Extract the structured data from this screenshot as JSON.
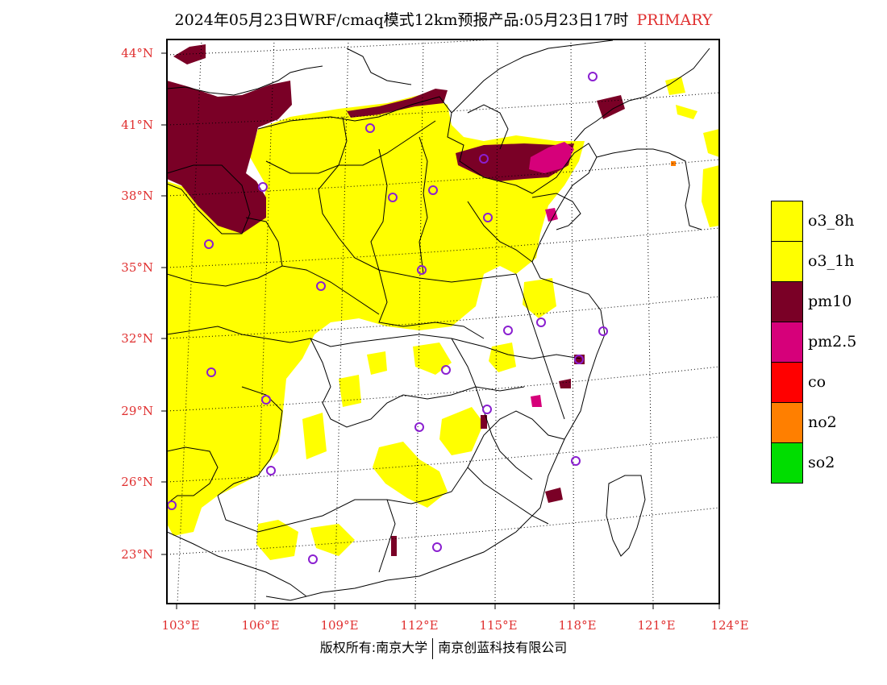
{
  "title": {
    "text": "2024年05月23日WRF/cmaq模式12km预报产品:05月23日17时",
    "tag": "PRIMARY",
    "tag_color": "#e03030"
  },
  "map": {
    "lat_labels": [
      "44°N",
      "41°N",
      "38°N",
      "35°N",
      "32°N",
      "29°N",
      "26°N",
      "23°N"
    ],
    "lon_labels": [
      "103°E",
      "106°E",
      "109°E",
      "112°E",
      "115°E",
      "118°E",
      "121°E",
      "124°E"
    ],
    "label_color": "#e03030",
    "station_marker_color": "#8a1fd0"
  },
  "legend": [
    {
      "label": "o3_8h",
      "color": "#ffff00"
    },
    {
      "label": "o3_1h",
      "color": "#ffff00"
    },
    {
      "label": "pm10",
      "color": "#7a0026"
    },
    {
      "label": "pm2.5",
      "color": "#d6007a"
    },
    {
      "label": "co",
      "color": "#ff0000"
    },
    {
      "label": "no2",
      "color": "#ff7f00"
    },
    {
      "label": "so2",
      "color": "#00dd00"
    }
  ],
  "footer": {
    "left": "版权所有:南京大学",
    "right": "南京创蓝科技有限公司"
  }
}
